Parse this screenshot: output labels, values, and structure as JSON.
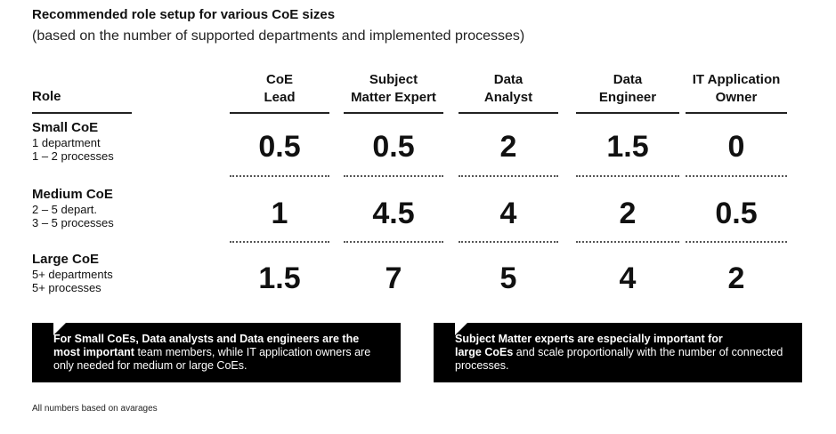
{
  "title": "Recommended role setup for various CoE sizes",
  "subtitle": "(based on the number of supported departments and implemented processes)",
  "role_header": "Role",
  "columns": [
    {
      "line1": "CoE",
      "line2": "Lead"
    },
    {
      "line1": "Subject",
      "line2": "Matter Expert"
    },
    {
      "line1": "Data",
      "line2": "Analyst"
    },
    {
      "line1": "Data",
      "line2": "Engineer"
    },
    {
      "line1": "IT Application",
      "line2": "Owner"
    }
  ],
  "rows": [
    {
      "name": "Small CoE",
      "d1": "1 department",
      "d2": "1 – 2 processes",
      "values": [
        "0.5",
        "0.5",
        "2",
        "1.5",
        "0"
      ]
    },
    {
      "name": "Medium CoE",
      "d1": "2 – 5 depart.",
      "d2": "3 – 5 processes",
      "values": [
        "1",
        "4.5",
        "4",
        "2",
        "0.5"
      ]
    },
    {
      "name": "Large CoE",
      "d1": "5+ departments",
      "d2": "5+ processes",
      "values": [
        "1.5",
        "7",
        "5",
        "4",
        "2"
      ]
    }
  ],
  "notes": [
    {
      "bold1": "For Small CoEs, Data analysts and Data engineers are the",
      "bold2": "most important",
      "rest": " team members, while IT application owners are only needed for medium or large CoEs."
    },
    {
      "bold1": "Subject Matter experts are especially important for",
      "bold2": "large CoEs",
      "rest": " and scale proportionally with the number of connected processes."
    }
  ],
  "footnote": "All numbers based on avarages"
}
